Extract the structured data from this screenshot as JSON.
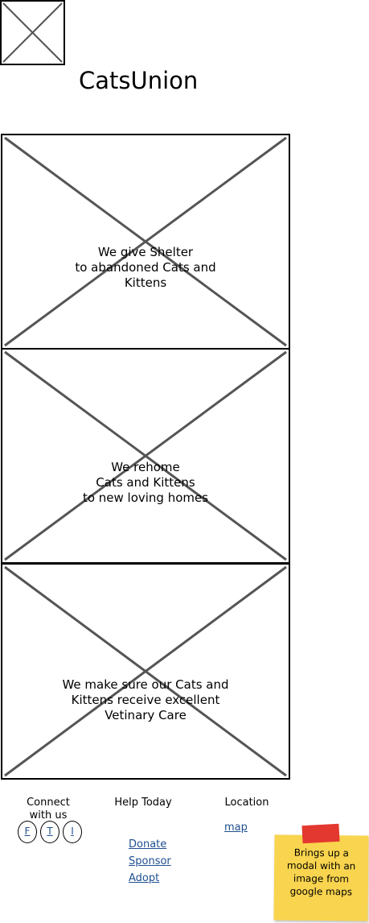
{
  "header": {
    "site_title": "CatsUnion"
  },
  "panels": [
    {
      "text": "We give Shelter\nto abandoned Cats and\nKittens"
    },
    {
      "text": "We rehome\nCats and Kittens\nto new loving homes"
    },
    {
      "text": "We make sure our Cats and\nKittens receive excellent\nVetinary Care"
    }
  ],
  "footer": {
    "connect": {
      "heading": "Connect\nwith us",
      "buttons": [
        "F",
        "T",
        "I"
      ]
    },
    "help": {
      "heading": "Help Today",
      "links": [
        "Donate",
        "Sponsor",
        "Adopt"
      ]
    },
    "location": {
      "heading": "Location",
      "link": "map"
    }
  },
  "annotation": {
    "note_text": "Brings up a\nmodal with an\nimage from\ngoogle maps"
  },
  "colors": {
    "placeholder_line": "#555555",
    "link": "#1f4f8f",
    "sticky_note": "#f9d44e",
    "sticky_tape": "#e3382f"
  }
}
